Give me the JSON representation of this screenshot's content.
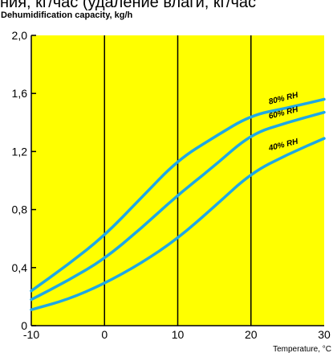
{
  "top_text": "ния, кг/час (удаление влаги, кг/час",
  "chart_data": {
    "type": "line",
    "title": "",
    "ylabel": "Dehumidification capacity, kg/h",
    "xlabel": "Temperature, °C",
    "xlim": [
      -10,
      30
    ],
    "ylim": [
      0,
      2.0
    ],
    "x_ticks": [
      "-10",
      "0",
      "10",
      "20",
      "30"
    ],
    "y_ticks": [
      "0",
      "0,4",
      "0,8",
      "1,2",
      "1,6",
      "2,0"
    ],
    "grid": "vertical",
    "line_color": "#1ea7e6",
    "plot_background": "#ffff00",
    "series": [
      {
        "name": "80% RH",
        "x": [
          -10,
          -5,
          0,
          5,
          10,
          15,
          20,
          25,
          30
        ],
        "y": [
          0.24,
          0.42,
          0.62,
          0.88,
          1.14,
          1.3,
          1.45,
          1.5,
          1.56
        ]
      },
      {
        "name": "60% RH",
        "x": [
          -10,
          -5,
          0,
          5,
          10,
          15,
          20,
          25,
          30
        ],
        "y": [
          0.18,
          0.31,
          0.46,
          0.67,
          0.9,
          1.1,
          1.32,
          1.4,
          1.47
        ]
      },
      {
        "name": "40% RH",
        "x": [
          -10,
          -5,
          0,
          5,
          10,
          15,
          20,
          25,
          30
        ],
        "y": [
          0.11,
          0.18,
          0.29,
          0.43,
          0.6,
          0.82,
          1.05,
          1.18,
          1.29
        ]
      }
    ]
  }
}
